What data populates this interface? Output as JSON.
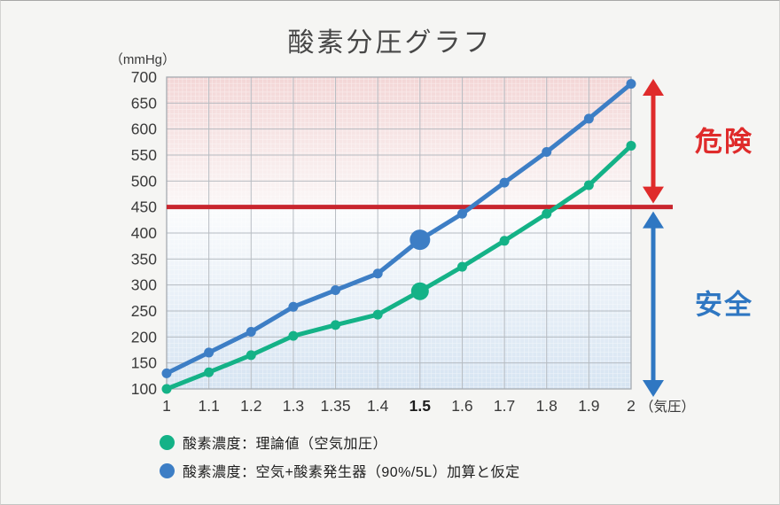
{
  "title": "酸素分圧グラフ",
  "y_axis_unit": "（mmHg）",
  "chart_data": {
    "type": "line",
    "title": "酸素分圧グラフ",
    "categories": [
      "1",
      "1.1",
      "1.2",
      "1.3",
      "1.35",
      "1.4",
      "1.5",
      "1.6",
      "1.7",
      "1.8",
      "1.9",
      "2"
    ],
    "x_axis_suffix": "（気圧）",
    "emphasis_category": "1.5",
    "xlabel": "気圧",
    "ylabel": "mmHg",
    "ylim": [
      100,
      700
    ],
    "ytick_step": 50,
    "grid": true,
    "legend_position": "bottom",
    "series": [
      {
        "name": "酸素濃度：理論値（空気加圧）",
        "color": "#14b287",
        "values": [
          100,
          132,
          165,
          202,
          223,
          243,
          288,
          335,
          385,
          437,
          492,
          568
        ]
      },
      {
        "name": "酸素濃度：空気+酸素発生器（90%/5L）加算と仮定",
        "color": "#3d7ec5",
        "values": [
          130,
          170,
          210,
          258,
          290,
          322,
          387,
          437,
          497,
          556,
          620,
          687
        ]
      }
    ],
    "threshold": {
      "value": 450,
      "color": "#c8262e"
    },
    "zones": [
      {
        "label": "危険",
        "from": 450,
        "to": 700,
        "color": "#df2b2b",
        "fill_top": "#f3d6d6",
        "fill_bottom": "#fbf7f7"
      },
      {
        "label": "安全",
        "from": 100,
        "to": 450,
        "color": "#2f77c2",
        "fill_top": "#fbfcfd",
        "fill_bottom": "#d6e4f2"
      }
    ]
  }
}
